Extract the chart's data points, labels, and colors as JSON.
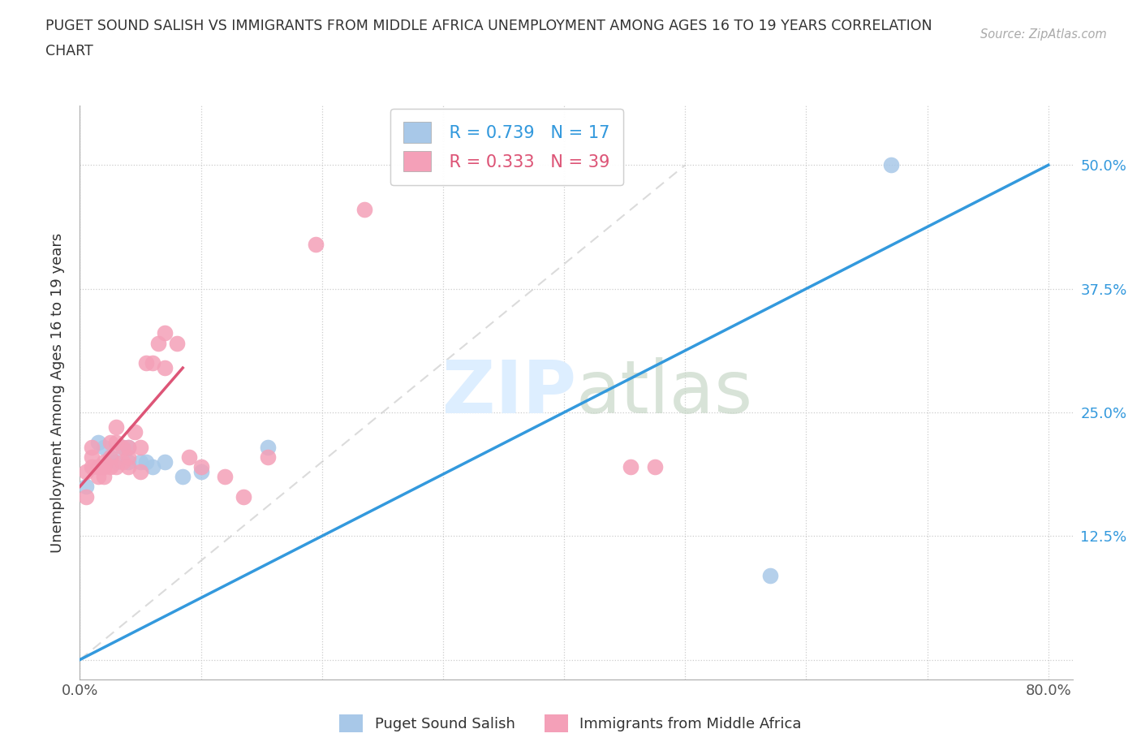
{
  "title_line1": "PUGET SOUND SALISH VS IMMIGRANTS FROM MIDDLE AFRICA UNEMPLOYMENT AMONG AGES 16 TO 19 YEARS CORRELATION",
  "title_line2": "CHART",
  "source_text": "Source: ZipAtlas.com",
  "ylabel": "Unemployment Among Ages 16 to 19 years",
  "xlim": [
    0.0,
    0.82
  ],
  "ylim": [
    -0.02,
    0.56
  ],
  "x_ticks": [
    0.0,
    0.1,
    0.2,
    0.3,
    0.4,
    0.5,
    0.6,
    0.7,
    0.8
  ],
  "y_ticks": [
    0.0,
    0.125,
    0.25,
    0.375,
    0.5
  ],
  "blue_R": 0.739,
  "blue_N": 17,
  "pink_R": 0.333,
  "pink_N": 39,
  "blue_color": "#a8c8e8",
  "pink_color": "#f4a0b8",
  "blue_line_color": "#3399dd",
  "pink_line_color": "#dd5577",
  "ref_line_color": "#cccccc",
  "watermark_color": "#ddeeff",
  "blue_points_x": [
    0.005,
    0.015,
    0.02,
    0.025,
    0.03,
    0.035,
    0.04,
    0.04,
    0.05,
    0.055,
    0.06,
    0.07,
    0.085,
    0.1,
    0.155,
    0.57,
    0.67
  ],
  "blue_points_y": [
    0.175,
    0.22,
    0.215,
    0.205,
    0.2,
    0.215,
    0.2,
    0.215,
    0.2,
    0.2,
    0.195,
    0.2,
    0.185,
    0.19,
    0.215,
    0.085,
    0.5
  ],
  "pink_points_x": [
    0.005,
    0.005,
    0.01,
    0.01,
    0.01,
    0.015,
    0.015,
    0.02,
    0.02,
    0.02,
    0.025,
    0.025,
    0.025,
    0.03,
    0.03,
    0.03,
    0.035,
    0.035,
    0.04,
    0.04,
    0.04,
    0.045,
    0.05,
    0.05,
    0.055,
    0.06,
    0.065,
    0.07,
    0.07,
    0.08,
    0.09,
    0.1,
    0.12,
    0.135,
    0.155,
    0.195,
    0.235,
    0.455,
    0.475
  ],
  "pink_points_y": [
    0.19,
    0.165,
    0.195,
    0.205,
    0.215,
    0.195,
    0.185,
    0.2,
    0.195,
    0.185,
    0.195,
    0.205,
    0.22,
    0.195,
    0.22,
    0.235,
    0.2,
    0.215,
    0.195,
    0.205,
    0.215,
    0.23,
    0.19,
    0.215,
    0.3,
    0.3,
    0.32,
    0.295,
    0.33,
    0.32,
    0.205,
    0.195,
    0.185,
    0.165,
    0.205,
    0.42,
    0.455,
    0.195,
    0.195
  ],
  "blue_line_x": [
    0.0,
    0.8
  ],
  "blue_line_y": [
    0.0,
    0.5
  ],
  "pink_line_x": [
    0.0,
    0.085
  ],
  "pink_line_y": [
    0.175,
    0.295
  ],
  "ref_line_x": [
    0.0,
    0.5
  ],
  "ref_line_y": [
    0.0,
    0.5
  ]
}
